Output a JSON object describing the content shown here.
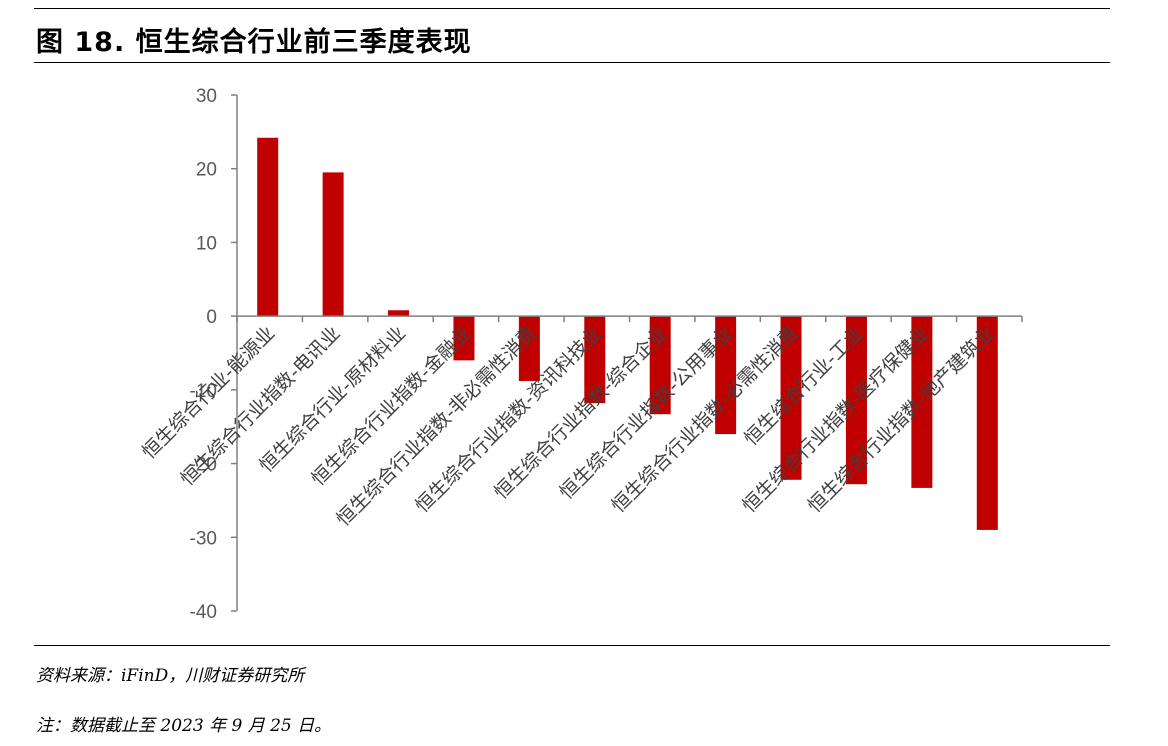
{
  "figure": {
    "title": "图 18. 恒生综合行业前三季度表现",
    "source": "资料来源：iFinD，川财证券研究所",
    "note": "注：数据截止至 2023 年 9 月 25 日。"
  },
  "chart_data": {
    "type": "bar",
    "title": "",
    "xlabel": "",
    "ylabel": "",
    "ylim": [
      -40,
      30
    ],
    "yticks": [
      30,
      20,
      10,
      0,
      -10,
      -20,
      -30,
      -40
    ],
    "grid": false,
    "legend": "none",
    "bar_color": "#C00000",
    "categories": [
      "恒生综合行业-能源业",
      "恒生综合行业指数-电讯业",
      "恒生综合行业-原材料业",
      "恒生综合行业指数-金融业",
      "恒生综合行业指数-非必需性消费",
      "恒生综合行业指数-资讯科技业",
      "恒生综合行业指数-综合企业",
      "恒生综合行业指数-公用事业",
      "恒生综合行业指数-必需性消费",
      "恒生综合行业-工业",
      "恒生综合行业指数-医疗保健业",
      "恒生综合行业指数-地产建筑业"
    ],
    "values": [
      24.2,
      19.5,
      0.8,
      -6.0,
      -8.8,
      -11.8,
      -13.3,
      -16.0,
      -22.2,
      -22.8,
      -23.3,
      -29.0
    ]
  }
}
